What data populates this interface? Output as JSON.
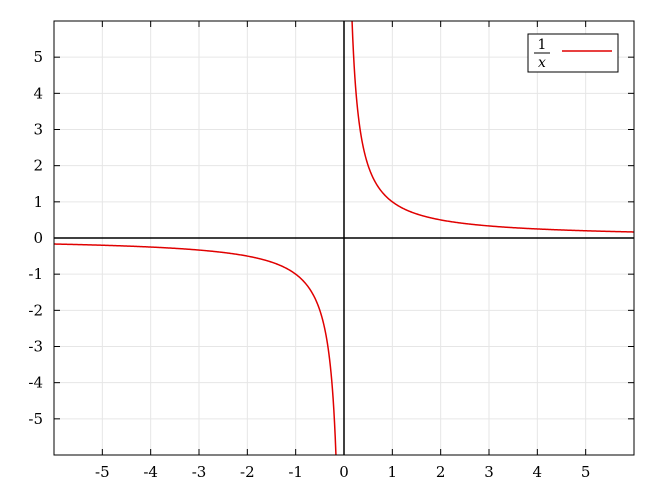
{
  "chart_data": {
    "type": "line",
    "title": "",
    "xlabel": "",
    "ylabel": "",
    "xlim": [
      -6,
      6
    ],
    "ylim": [
      -6,
      6
    ],
    "grid": true,
    "legend_position": "top-right",
    "x_ticks": [
      -5,
      -4,
      -3,
      -2,
      -1,
      0,
      1,
      2,
      3,
      4,
      5
    ],
    "y_ticks": [
      -5,
      -4,
      -3,
      -2,
      -1,
      0,
      1,
      2,
      3,
      4,
      5
    ],
    "x_tick_labels": [
      "-5",
      "-4",
      "-3",
      "-2",
      "-1",
      "0",
      "1",
      "2",
      "3",
      "4",
      "5"
    ],
    "y_tick_labels": [
      "-5",
      "-4",
      "-3",
      "-2",
      "-1",
      "0",
      "1",
      "2",
      "3",
      "4",
      "5"
    ],
    "series": [
      {
        "name_numerator": "1",
        "name_denominator": "x",
        "color": "#e00000",
        "function": "1/x",
        "x": [
          -6,
          -5,
          -4,
          -3,
          -2,
          -1.5,
          -1,
          -0.75,
          -0.5,
          -0.4,
          -0.3,
          -0.25,
          -0.2,
          -0.17,
          0.17,
          0.2,
          0.25,
          0.3,
          0.4,
          0.5,
          0.75,
          1,
          1.5,
          2,
          3,
          4,
          5,
          6
        ],
        "y": [
          -0.167,
          -0.2,
          -0.25,
          -0.333,
          -0.5,
          -0.667,
          -1,
          -1.333,
          -2,
          -2.5,
          -3.333,
          -4,
          -5,
          -5.882,
          5.882,
          5,
          4,
          3.333,
          2.5,
          2,
          1.333,
          1,
          0.667,
          0.5,
          0.333,
          0.25,
          0.2,
          0.167
        ]
      }
    ],
    "colors": {
      "curve": "#e00000",
      "grid": "#e6e6e6",
      "axes": "#000000"
    }
  }
}
